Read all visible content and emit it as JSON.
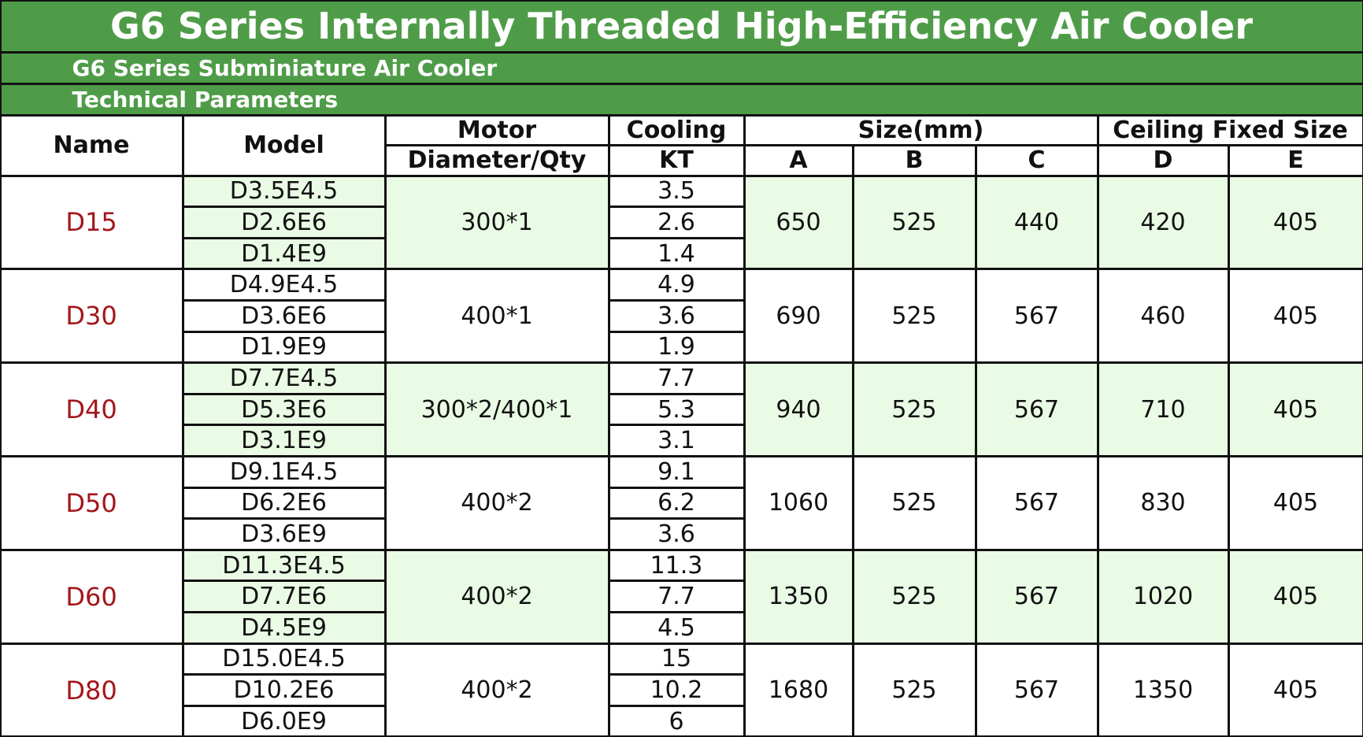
{
  "header": {
    "title": "G6 Series Internally Threaded High-Efficiency Air Cooler",
    "subtitle": "G6 Series Subminiature Air Cooler",
    "section": "Technical Parameters"
  },
  "table": {
    "header_top": [
      "Name",
      "Model",
      "Motor",
      "Cooling",
      "Size(mm)",
      "Ceiling Fixed Size"
    ],
    "header_sub": [
      "Diameter/Qty",
      "KT",
      "A",
      "B",
      "C",
      "D",
      "E"
    ],
    "groups": [
      {
        "name": "D15",
        "models": [
          "D3.5E4.5",
          "D2.6E6",
          "D1.4E9"
        ],
        "motor": "300*1",
        "cooling": [
          "3.5",
          "2.6",
          "1.4"
        ],
        "sizes": [
          "650",
          "525",
          "440",
          "420",
          "405"
        ]
      },
      {
        "name": "D30",
        "models": [
          "D4.9E4.5",
          "D3.6E6",
          "D1.9E9"
        ],
        "motor": "400*1",
        "cooling": [
          "4.9",
          "3.6",
          "1.9"
        ],
        "sizes": [
          "690",
          "525",
          "567",
          "460",
          "405"
        ]
      },
      {
        "name": "D40",
        "models": [
          "D7.7E4.5",
          "D5.3E6",
          "D3.1E9"
        ],
        "motor": "300*2/400*1",
        "cooling": [
          "7.7",
          "5.3",
          "3.1"
        ],
        "sizes": [
          "940",
          "525",
          "567",
          "710",
          "405"
        ]
      },
      {
        "name": "D50",
        "models": [
          "D9.1E4.5",
          "D6.2E6",
          "D3.6E9"
        ],
        "motor": "400*2",
        "cooling": [
          "9.1",
          "6.2",
          "3.6"
        ],
        "sizes": [
          "1060",
          "525",
          "567",
          "830",
          "405"
        ]
      },
      {
        "name": "D60",
        "models": [
          "D11.3E4.5",
          "D7.7E6",
          "D4.5E9"
        ],
        "motor": "400*2",
        "cooling": [
          "11.3",
          "7.7",
          "4.5"
        ],
        "sizes": [
          "1350",
          "525",
          "567",
          "1020",
          "405"
        ]
      },
      {
        "name": "D80",
        "models": [
          "D15.0E4.5",
          "D10.2E6",
          "D6.0E9"
        ],
        "motor": "400*2",
        "cooling": [
          "15",
          "10.2",
          "6"
        ],
        "sizes": [
          "1680",
          "525",
          "567",
          "1350",
          "405"
        ]
      }
    ]
  }
}
